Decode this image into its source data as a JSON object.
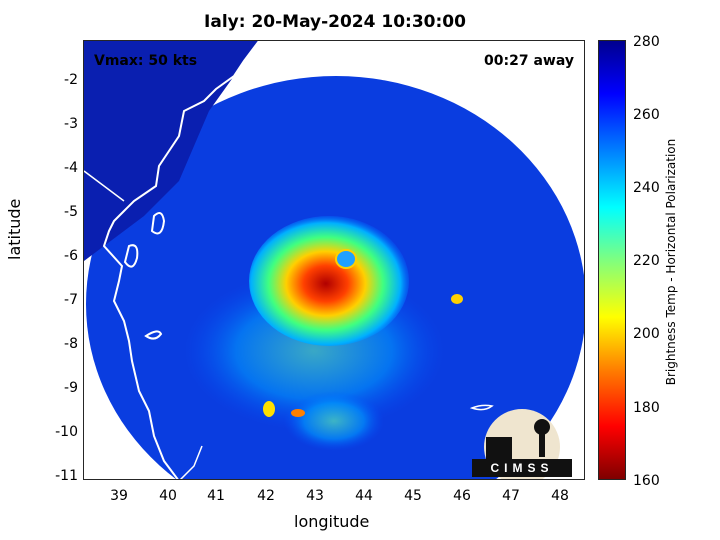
{
  "title": "Ialy: 20-May-2024 10:30:00",
  "vmax_label": "Vmax: 50 kts",
  "time_away": "00:27 away",
  "logo_text": "CIMSS",
  "axes": {
    "xlabel": "longitude",
    "ylabel": "latitude",
    "x_ticks": [
      "39",
      "40",
      "41",
      "42",
      "43",
      "44",
      "45",
      "46",
      "47",
      "48"
    ],
    "y_ticks": [
      "-2",
      "-3",
      "-4",
      "-5",
      "-6",
      "-7",
      "-8",
      "-9",
      "-10",
      "-11"
    ]
  },
  "colorbar": {
    "label": "Brightness Temp - Horizontal Polarization",
    "ticks": [
      "280",
      "260",
      "240",
      "220",
      "200",
      "180",
      "160"
    ]
  }
}
